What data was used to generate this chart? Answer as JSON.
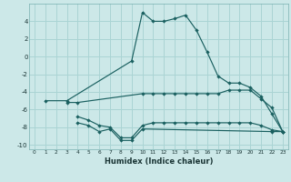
{
  "xlabel": "Humidex (Indice chaleur)",
  "bg_color": "#cce8e8",
  "grid_color": "#aad4d4",
  "line_color": "#1a6060",
  "xlim": [
    -0.5,
    23.5
  ],
  "ylim": [
    -10.5,
    6.0
  ],
  "yticks": [
    -10,
    -8,
    -6,
    -4,
    -2,
    0,
    2,
    4
  ],
  "xticks": [
    0,
    1,
    2,
    3,
    4,
    5,
    6,
    7,
    8,
    9,
    10,
    11,
    12,
    13,
    14,
    15,
    16,
    17,
    18,
    19,
    20,
    21,
    22,
    23
  ],
  "series": [
    {
      "x": [
        1,
        3,
        9,
        10,
        11,
        12,
        13,
        14,
        15,
        16,
        17,
        18,
        19,
        20,
        21,
        22,
        23
      ],
      "y": [
        -5,
        -5,
        -0.5,
        5,
        4,
        4,
        4.3,
        4.7,
        3,
        0.5,
        -2.2,
        -3,
        -3,
        -3.5,
        -4.5,
        -6.5,
        -8.5
      ]
    },
    {
      "x": [
        3,
        4,
        10,
        11,
        12,
        13,
        14,
        15,
        16,
        17,
        18,
        19,
        20,
        21,
        22,
        23
      ],
      "y": [
        -5.2,
        -5.2,
        -4.2,
        -4.2,
        -4.2,
        -4.2,
        -4.2,
        -4.2,
        -4.2,
        -4.2,
        -3.8,
        -3.8,
        -3.8,
        -4.8,
        -5.8,
        -8.5
      ]
    },
    {
      "x": [
        4,
        5,
        6,
        7,
        8,
        9,
        10,
        11,
        12,
        13,
        14,
        15,
        16,
        17,
        18,
        19,
        20,
        21,
        22,
        23
      ],
      "y": [
        -6.8,
        -7.2,
        -7.8,
        -8.0,
        -9.2,
        -9.2,
        -7.8,
        -7.5,
        -7.5,
        -7.5,
        -7.5,
        -7.5,
        -7.5,
        -7.5,
        -7.5,
        -7.5,
        -7.5,
        -7.8,
        -8.3,
        -8.5
      ]
    },
    {
      "x": [
        4,
        5,
        6,
        7,
        8,
        9,
        10,
        22,
        23
      ],
      "y": [
        -7.5,
        -7.8,
        -8.5,
        -8.2,
        -9.5,
        -9.5,
        -8.2,
        -8.5,
        -8.5
      ]
    }
  ]
}
